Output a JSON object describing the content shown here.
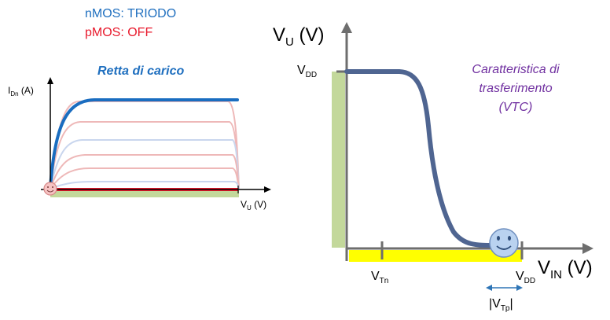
{
  "state": {
    "nmos": "nMOS: TRIODO",
    "pmos": "pMOS: OFF"
  },
  "left_plot": {
    "title": "Retta di carico",
    "ylabel": {
      "main": "I",
      "sub": "Dn",
      "tail": " (A)"
    },
    "xlabel": {
      "main": "V",
      "sub": "U",
      "tail": " (V)"
    }
  },
  "right_plot": {
    "ylabel": {
      "main": "V",
      "sub": "U",
      "tail": " (V)"
    },
    "xlabel": {
      "main": "V",
      "sub": "IN",
      "tail": " (V)"
    },
    "vdd_y": {
      "main": "V",
      "sub": "DD"
    },
    "vtn": {
      "main": "V",
      "sub": "Tn"
    },
    "vdd_x": {
      "main": "V",
      "sub": "DD"
    },
    "vtp": {
      "pre": "|V",
      "sub": "Tp",
      "post": "|"
    },
    "note": [
      "Caratteristica di",
      "trasferimento",
      "(VTC)"
    ]
  },
  "colors": {
    "nmos": "#1f6fbf",
    "pmos": "#e8192c",
    "highlight_curve": "#1a6dc0",
    "faint_red": "#eeb8b8",
    "faint_blue": "#c9d6ee",
    "green_band": "#c3d89b",
    "yellow_band": "#ffff00",
    "vtc_curve": "#4f6591",
    "note": "#7030a0",
    "axis": "#6e6e6e"
  }
}
